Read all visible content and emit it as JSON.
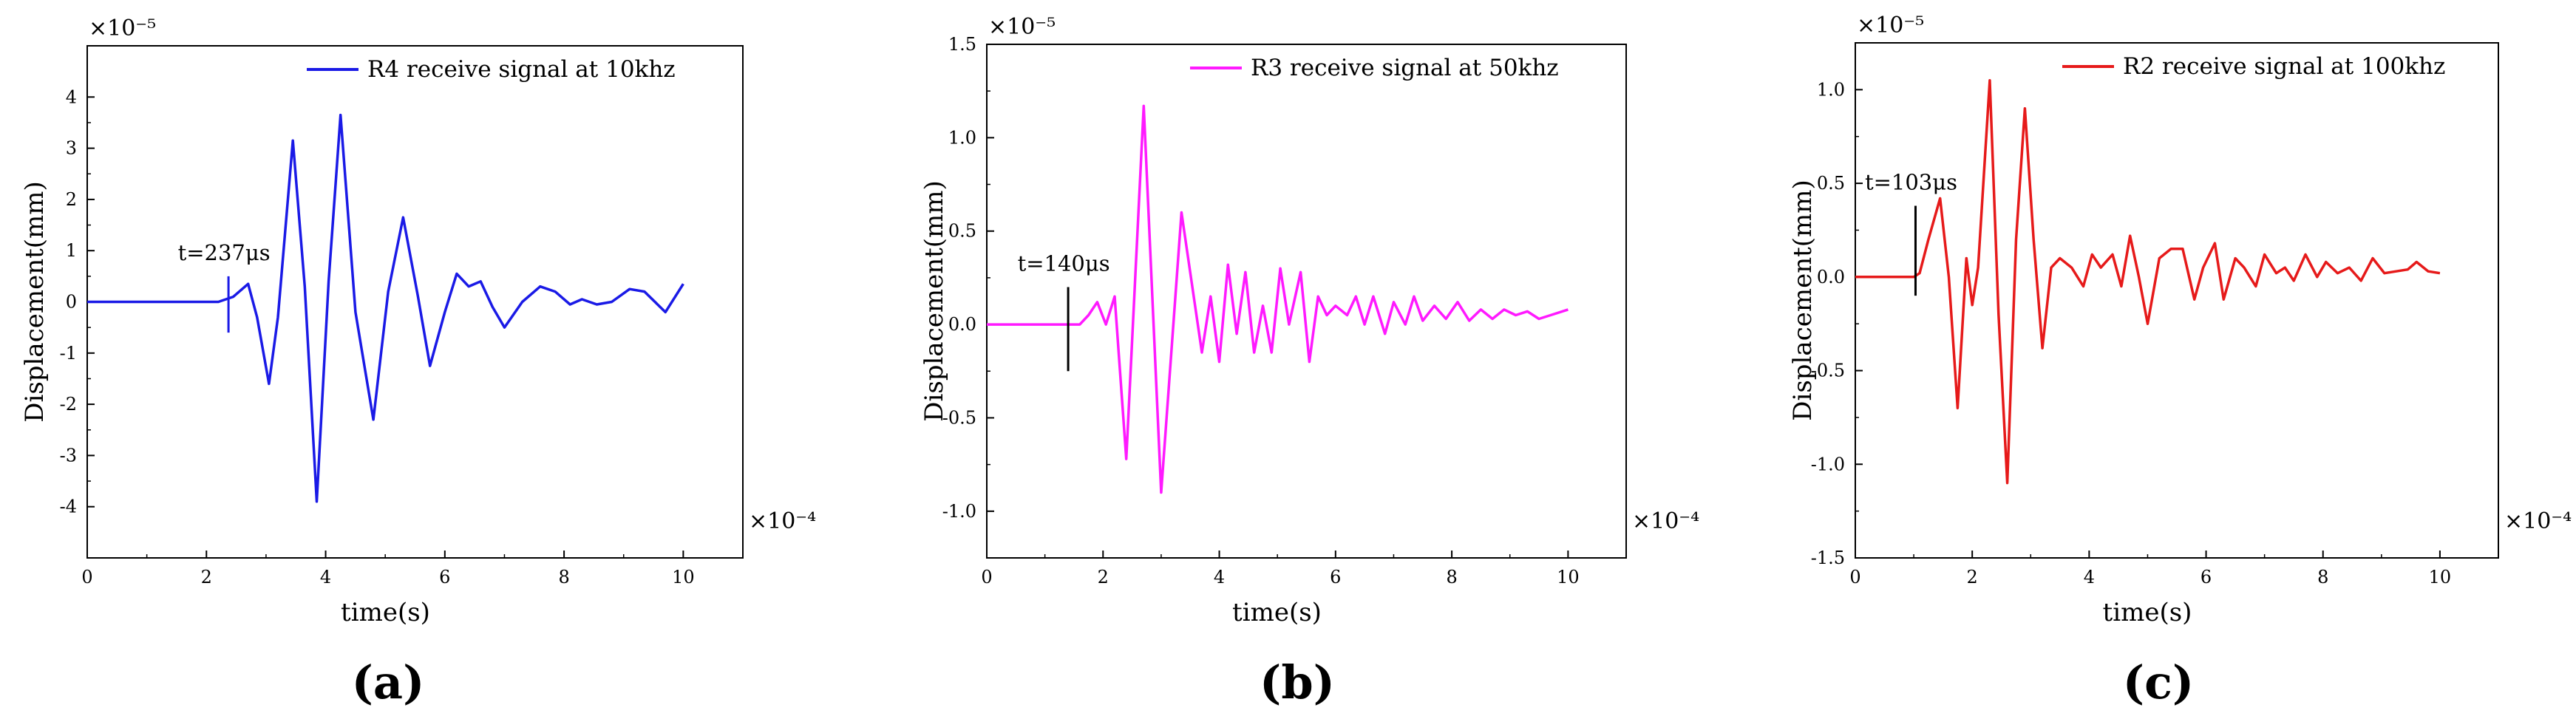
{
  "chart_data": [
    {
      "type": "line",
      "panel_label": "a",
      "xlabel": "time(s)",
      "ylabel": "Displacement(mm)",
      "x_multiplier": "×10⁻⁴",
      "y_multiplier": "×10⁻⁵",
      "xlim": [
        0,
        11
      ],
      "ylim": [
        -5,
        5
      ],
      "x_ticks": [
        0,
        2,
        4,
        6,
        8,
        10
      ],
      "x_tick_labels": [
        "0",
        "2",
        "4",
        "6",
        "8",
        "10"
      ],
      "y_ticks": [
        -4,
        -3,
        -2,
        -1,
        0,
        1,
        2,
        3,
        4
      ],
      "y_tick_labels": [
        "-4",
        "-3",
        "-2",
        "-1",
        "0",
        "1",
        "2",
        "3",
        "4"
      ],
      "color": "#1a1ae6",
      "legend_placement": "top-right",
      "series": [
        {
          "name": "R4 receive signal at 10khz",
          "x": [
            0,
            1.5,
            2.2,
            2.45,
            2.7,
            2.85,
            3.05,
            3.2,
            3.45,
            3.65,
            3.85,
            4.05,
            4.25,
            4.5,
            4.8,
            5.05,
            5.3,
            5.55,
            5.75,
            6.0,
            6.2,
            6.4,
            6.6,
            6.8,
            7.0,
            7.3,
            7.6,
            7.85,
            8.1,
            8.3,
            8.55,
            8.8,
            9.1,
            9.35,
            9.7,
            10.0
          ],
          "y": [
            0,
            0,
            0,
            0.1,
            0.35,
            -0.3,
            -1.6,
            -0.3,
            3.15,
            0.3,
            -3.9,
            0.4,
            3.65,
            -0.2,
            -2.3,
            0.2,
            1.65,
            0.1,
            -1.25,
            -0.2,
            0.55,
            0.3,
            0.4,
            -0.1,
            -0.5,
            0.0,
            0.3,
            0.2,
            -0.05,
            0.05,
            -0.05,
            0.0,
            0.25,
            0.2,
            -0.2,
            0.35
          ]
        }
      ],
      "annotations": [
        {
          "text": "t=237μs",
          "x": 2.37,
          "y_from": -0.6,
          "y_to": 0.5
        }
      ]
    },
    {
      "type": "line",
      "panel_label": "b",
      "xlabel": "time(s)",
      "ylabel": "Displacement(mm)",
      "x_multiplier": "×10⁻⁴",
      "y_multiplier": "×10⁻⁵",
      "xlim": [
        0,
        11
      ],
      "ylim": [
        -1.25,
        1.5
      ],
      "x_ticks": [
        0,
        2,
        4,
        6,
        8,
        10
      ],
      "x_tick_labels": [
        "0",
        "2",
        "4",
        "6",
        "8",
        "10"
      ],
      "y_ticks": [
        -1.0,
        -0.5,
        0.0,
        0.5,
        1.0,
        1.5
      ],
      "y_tick_labels": [
        "-1.0",
        "-0.5",
        "0.0",
        "0.5",
        "1.0",
        "1.5"
      ],
      "color": "#ff1aff",
      "legend_placement": "top-right",
      "series": [
        {
          "name": "R3 receive signal at 50khz",
          "x": [
            0,
            1.4,
            1.6,
            1.75,
            1.9,
            2.05,
            2.2,
            2.4,
            2.7,
            3.0,
            3.35,
            3.7,
            3.85,
            4.0,
            4.15,
            4.3,
            4.45,
            4.6,
            4.75,
            4.9,
            5.05,
            5.2,
            5.4,
            5.55,
            5.7,
            5.85,
            6.0,
            6.2,
            6.35,
            6.5,
            6.65,
            6.85,
            7.0,
            7.2,
            7.35,
            7.5,
            7.7,
            7.9,
            8.1,
            8.3,
            8.5,
            8.7,
            8.9,
            9.1,
            9.3,
            9.5,
            9.7,
            10.0
          ],
          "y": [
            0,
            0,
            0,
            0.05,
            0.12,
            0.0,
            0.15,
            -0.72,
            1.17,
            -0.9,
            0.6,
            -0.15,
            0.15,
            -0.2,
            0.32,
            -0.05,
            0.28,
            -0.15,
            0.1,
            -0.15,
            0.3,
            0.0,
            0.28,
            -0.2,
            0.15,
            0.05,
            0.1,
            0.05,
            0.15,
            0.0,
            0.15,
            -0.05,
            0.12,
            0.0,
            0.15,
            0.02,
            0.1,
            0.03,
            0.12,
            0.02,
            0.08,
            0.03,
            0.08,
            0.05,
            0.07,
            0.03,
            0.05,
            0.08
          ]
        }
      ],
      "annotations": [
        {
          "text": "t=140μs",
          "x": 1.4,
          "y_from": -0.25,
          "y_to": 0.2
        }
      ]
    },
    {
      "type": "line",
      "panel_label": "c",
      "xlabel": "time(s)",
      "ylabel": "Displacement(mm)",
      "x_multiplier": "×10⁻⁴",
      "y_multiplier": "×10⁻⁵",
      "xlim": [
        0,
        11
      ],
      "ylim": [
        -1.5,
        1.25
      ],
      "x_ticks": [
        0,
        2,
        4,
        6,
        8,
        10
      ],
      "x_tick_labels": [
        "0",
        "2",
        "4",
        "6",
        "8",
        "10"
      ],
      "y_ticks": [
        -1.5,
        -1.0,
        -0.5,
        0.0,
        0.5,
        1.0
      ],
      "y_tick_labels": [
        "-1.5",
        "-1.0",
        "-0.5",
        "0.0",
        "0.5",
        "1.0"
      ],
      "color": "#e61a1a",
      "legend_placement": "top-right",
      "series": [
        {
          "name": "R2 receive signal at 100khz",
          "x": [
            0,
            1.0,
            1.1,
            1.25,
            1.45,
            1.6,
            1.75,
            1.9,
            2.0,
            2.1,
            2.3,
            2.45,
            2.6,
            2.75,
            2.9,
            3.05,
            3.2,
            3.35,
            3.5,
            3.7,
            3.9,
            4.05,
            4.2,
            4.4,
            4.55,
            4.7,
            4.85,
            5.0,
            5.2,
            5.4,
            5.6,
            5.8,
            5.95,
            6.15,
            6.3,
            6.5,
            6.65,
            6.85,
            7.0,
            7.2,
            7.35,
            7.5,
            7.7,
            7.9,
            8.05,
            8.25,
            8.45,
            8.65,
            8.85,
            9.05,
            9.25,
            9.45,
            9.6,
            9.8,
            10.0
          ],
          "y": [
            0,
            0,
            0.02,
            0.2,
            0.42,
            0.0,
            -0.7,
            0.1,
            -0.15,
            0.05,
            1.05,
            -0.2,
            -1.1,
            0.2,
            0.9,
            0.2,
            -0.38,
            0.05,
            0.1,
            0.05,
            -0.05,
            0.12,
            0.05,
            0.12,
            -0.05,
            0.22,
            0.0,
            -0.25,
            0.1,
            0.15,
            0.15,
            -0.12,
            0.05,
            0.18,
            -0.12,
            0.1,
            0.05,
            -0.05,
            0.12,
            0.02,
            0.05,
            -0.02,
            0.12,
            0.0,
            0.08,
            0.02,
            0.05,
            -0.02,
            0.1,
            0.02,
            0.03,
            0.04,
            0.08,
            0.03,
            0.02
          ]
        }
      ],
      "annotations": [
        {
          "text": "t=103μs",
          "x": 1.03,
          "y_from": -0.1,
          "y_to": 0.38
        }
      ]
    }
  ],
  "captions": [
    "(a)",
    "(b)",
    "(c)"
  ]
}
